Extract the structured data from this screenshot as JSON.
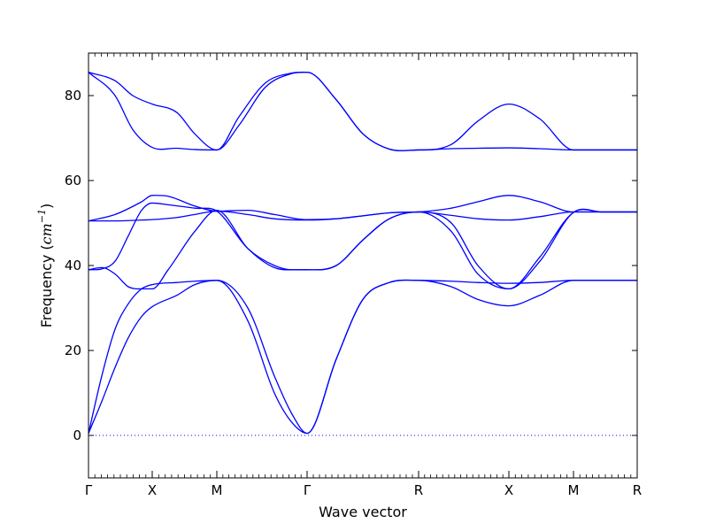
{
  "chart_data": {
    "type": "line",
    "title": "",
    "xlabel": "Wave vector",
    "ylabel": "Frequency",
    "ylabel_unit": "cm",
    "ylabel_unit_exp": "−1",
    "ylim": [
      -10,
      90
    ],
    "yticks": [
      0,
      20,
      40,
      60,
      80
    ],
    "xlim": [
      0,
      6.2
    ],
    "xticks": [
      {
        "label": "Γ",
        "x": 0
      },
      {
        "label": "X",
        "x": 0.72
      },
      {
        "label": "M",
        "x": 1.45
      },
      {
        "label": "Γ",
        "x": 2.47
      },
      {
        "label": "R",
        "x": 3.73
      },
      {
        "label": "X",
        "x": 4.75
      },
      {
        "label": "M",
        "x": 5.48
      },
      {
        "label": "R",
        "x": 6.2
      }
    ],
    "zero_line": {
      "value": 0,
      "style": "dotted"
    },
    "line_color": "#0000ff",
    "zero_line_color": "#0000ff",
    "series": [
      {
        "x": [
          0,
          0.15,
          0.3,
          0.45,
          0.6,
          0.72,
          1.0,
          1.2,
          1.45,
          1.8,
          2.1,
          2.3,
          2.47,
          2.8,
          3.1,
          3.4,
          3.73,
          4.1,
          4.4,
          4.75,
          5.1,
          5.48,
          5.8,
          6.2
        ],
        "y": [
          0.5,
          8,
          16,
          23,
          28,
          30.3,
          33,
          35.5,
          36.5,
          30,
          14,
          5,
          0.5,
          18,
          32,
          36,
          36.5,
          35,
          32,
          30.5,
          33,
          36.5,
          36.5,
          36.5
        ]
      },
      {
        "x": [
          0,
          0.15,
          0.3,
          0.45,
          0.6,
          0.72,
          1.0,
          1.2,
          1.45,
          1.8,
          2.1,
          2.3,
          2.47,
          2.8,
          3.1,
          3.4,
          3.73,
          4.1,
          4.4,
          4.75,
          5.1,
          5.48,
          5.8,
          6.2
        ],
        "y": [
          0.5,
          14,
          25,
          31,
          34.5,
          35.5,
          36,
          36.3,
          36.5,
          27,
          10,
          3,
          0.5,
          18,
          32,
          36,
          36.5,
          36.3,
          36,
          35.8,
          36,
          36.5,
          36.5,
          36.5
        ]
      },
      {
        "x": [
          0,
          0.15,
          0.3,
          0.45,
          0.6,
          0.72,
          0.9,
          1.2,
          1.45,
          1.8,
          2.1,
          2.3,
          2.47,
          2.8,
          3.1,
          3.4,
          3.73,
          4.1,
          4.4,
          4.75,
          5.1,
          5.48,
          5.8,
          6.2
        ],
        "y": [
          39,
          39.5,
          38,
          35,
          34.5,
          34.5,
          39,
          48,
          53,
          44,
          39.5,
          39,
          39,
          40,
          46,
          51,
          52.6,
          48,
          38,
          34.5,
          42,
          52.5,
          52.6,
          52.6
        ]
      },
      {
        "x": [
          0,
          0.15,
          0.3,
          0.45,
          0.6,
          0.72,
          0.9,
          1.2,
          1.45,
          1.8,
          2.1,
          2.3,
          2.47,
          2.8,
          3.1,
          3.4,
          3.73,
          4.1,
          4.4,
          4.75,
          5.1,
          5.48,
          5.8,
          6.2
        ],
        "y": [
          39,
          39.2,
          41,
          47,
          53,
          54.7,
          54.3,
          53.5,
          52.8,
          44,
          40,
          39,
          39,
          40,
          46,
          51,
          52.6,
          50,
          40,
          34.5,
          41,
          52.5,
          52.6,
          52.6
        ]
      },
      {
        "x": [
          0,
          0.3,
          0.6,
          0.72,
          1.0,
          1.2,
          1.45,
          1.8,
          2.1,
          2.47,
          2.8,
          3.1,
          3.4,
          3.73,
          4.1,
          4.4,
          4.75,
          5.1,
          5.48,
          5.8,
          6.2
        ],
        "y": [
          50.5,
          50.5,
          50.7,
          50.8,
          51.3,
          52,
          52.8,
          52,
          51,
          50.7,
          51,
          51.7,
          52.4,
          52.6,
          51.8,
          51,
          50.7,
          51.5,
          52.6,
          52.6,
          52.6
        ]
      },
      {
        "x": [
          0,
          0.3,
          0.6,
          0.72,
          0.9,
          1.2,
          1.45,
          1.8,
          2.1,
          2.47,
          2.8,
          3.1,
          3.4,
          3.73,
          4.1,
          4.4,
          4.75,
          5.1,
          5.48,
          5.8,
          6.2
        ],
        "y": [
          50.5,
          52,
          55,
          56.5,
          56.3,
          54,
          52.8,
          53,
          52,
          50.8,
          51,
          51.7,
          52.4,
          52.6,
          53.5,
          55,
          56.5,
          55,
          52.6,
          52.6,
          52.6
        ]
      },
      {
        "x": [
          0,
          0.3,
          0.5,
          0.72,
          1.0,
          1.2,
          1.45,
          1.7,
          2.0,
          2.3,
          2.47,
          2.8,
          3.1,
          3.4,
          3.73,
          4.1,
          4.4,
          4.75,
          5.1,
          5.48,
          5.8,
          6.2
        ],
        "y": [
          85.5,
          80,
          72,
          67.8,
          67.6,
          67.3,
          67.2,
          73,
          82,
          85.2,
          85.5,
          79,
          71,
          67.4,
          67.2,
          67.5,
          67.6,
          67.7,
          67.5,
          67.2,
          67.2,
          67.2
        ]
      },
      {
        "x": [
          0,
          0.3,
          0.5,
          0.72,
          1.0,
          1.2,
          1.45,
          1.7,
          2.0,
          2.3,
          2.47,
          2.8,
          3.1,
          3.4,
          3.73,
          4.1,
          4.4,
          4.75,
          5.1,
          5.48,
          5.8,
          6.2
        ],
        "y": [
          85.5,
          83.5,
          80,
          78,
          76,
          71,
          67.2,
          75,
          83,
          85.3,
          85.5,
          79,
          71,
          67.4,
          67.2,
          68.5,
          74,
          78,
          74.5,
          67.2,
          67.2,
          67.2
        ]
      }
    ]
  }
}
